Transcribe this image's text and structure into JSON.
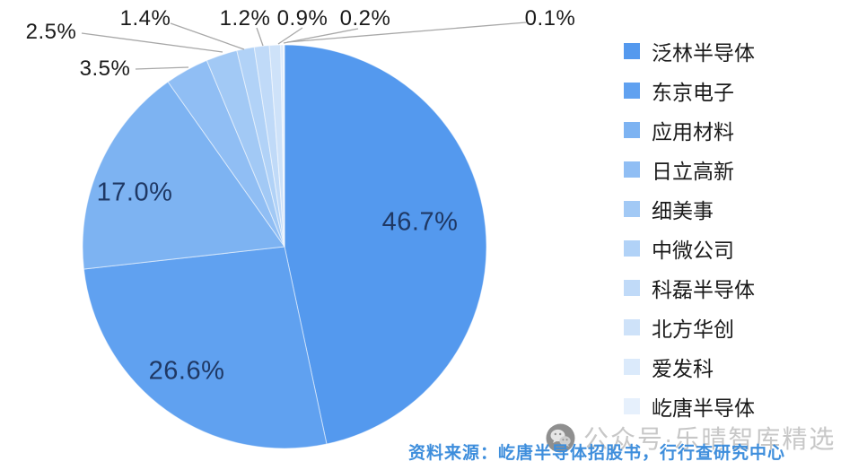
{
  "chart_data": {
    "type": "pie",
    "title": "",
    "unit": "%",
    "start_angle_deg": 0,
    "direction": "clockwise",
    "legend_position": "right",
    "slices": [
      {
        "name": "泛林半导体",
        "value": 46.7,
        "label": "46.7%",
        "color": "#5499EE"
      },
      {
        "name": "东京电子",
        "value": 26.6,
        "label": "26.6%",
        "color": "#60A1F0"
      },
      {
        "name": "应用材料",
        "value": 17.0,
        "label": "17.0%",
        "color": "#7DB3F2"
      },
      {
        "name": "日立高新",
        "value": 3.5,
        "label": "3.5%",
        "color": "#90BEF4"
      },
      {
        "name": "细美事",
        "value": 2.5,
        "label": "2.5%",
        "color": "#A2C9F5"
      },
      {
        "name": "中微公司",
        "value": 1.4,
        "label": "1.4%",
        "color": "#B1D2F7"
      },
      {
        "name": "科磊半导体",
        "value": 1.2,
        "label": "1.2%",
        "color": "#C0DAF8"
      },
      {
        "name": "北方华创",
        "value": 0.9,
        "label": "0.9%",
        "color": "#CEE2F9"
      },
      {
        "name": "爱发科",
        "value": 0.2,
        "label": "0.2%",
        "color": "#DBEAFB"
      },
      {
        "name": "屹唐半导体",
        "value": 0.1,
        "label": "0.1%",
        "color": "#E6F0FC"
      }
    ],
    "label_color_inside": "#1F3864",
    "label_color_outside": "#1A1A1A",
    "leader_line_color": "#A8A8A8",
    "slice_border_color": "#FFFFFF"
  },
  "footer": {
    "source": "资料来源：屹唐半导体招股书，行行查研究中心",
    "source_color": "#3E8EDC",
    "watermark": "公众号·乐晴智库精选",
    "watermark_color": "#C7C7C7",
    "watermark_icon": "wechat-icon"
  }
}
